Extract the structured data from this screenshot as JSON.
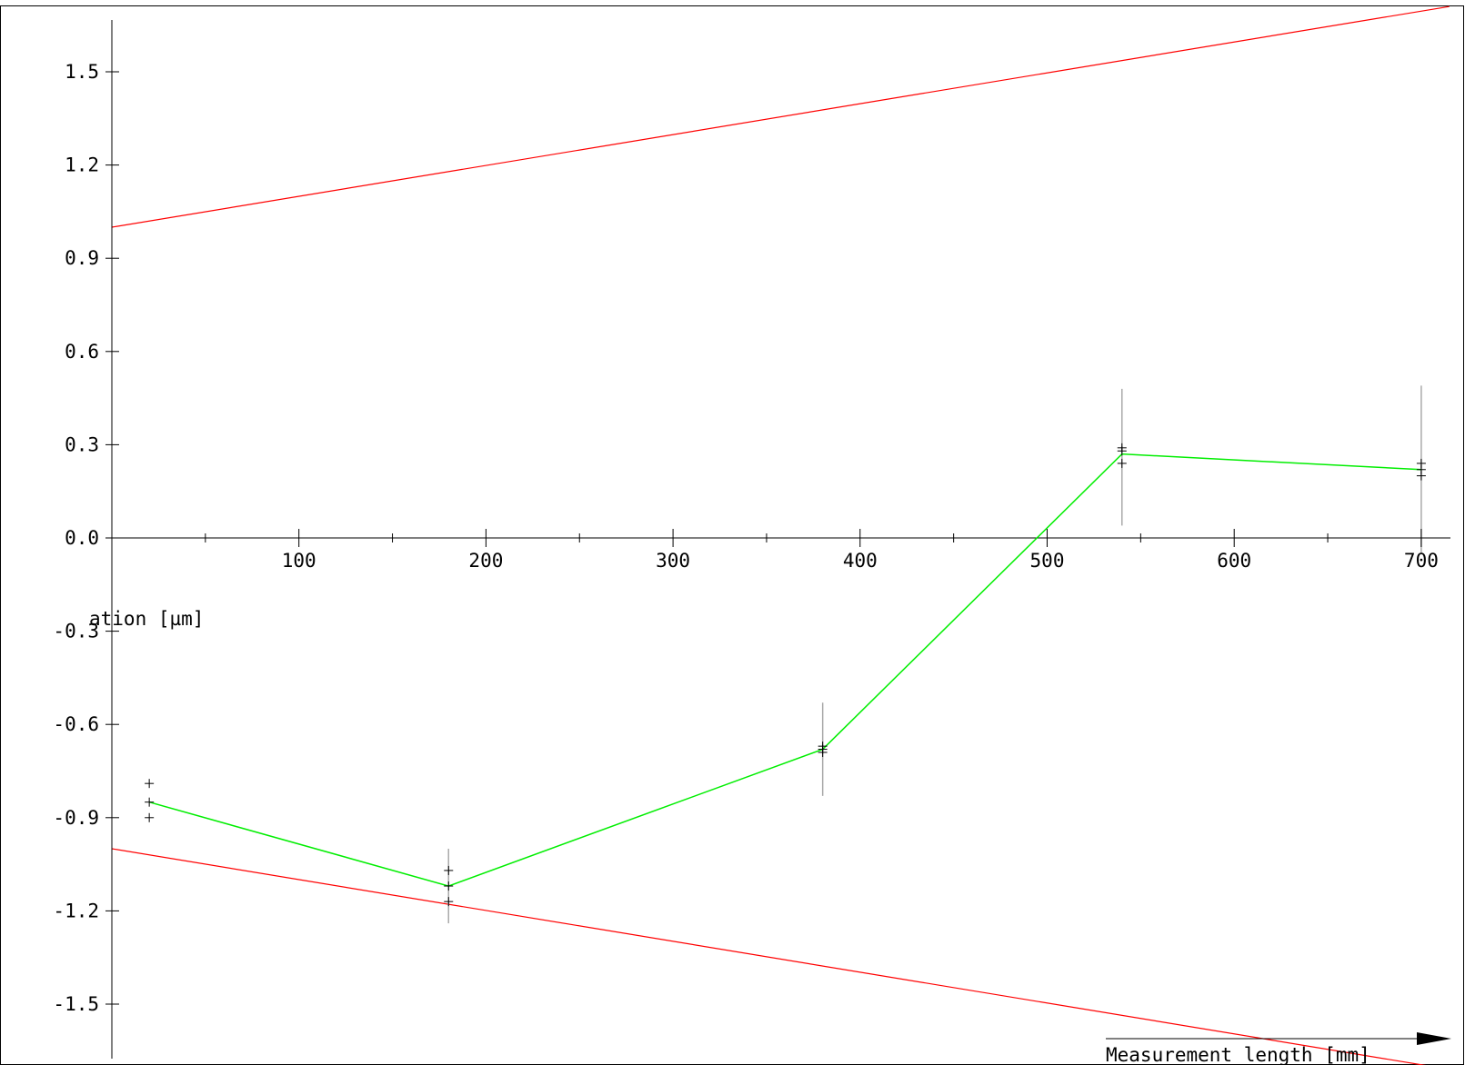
{
  "chart_data": {
    "type": "line",
    "title": "",
    "xlabel": "Measurement length [mm]",
    "ylabel": "ation  [µm]",
    "xlim": [
      0,
      715
    ],
    "ylim": [
      -1.68,
      1.7
    ],
    "x_ticks": [
      100,
      200,
      300,
      400,
      500,
      600,
      700
    ],
    "x_tick_labels": [
      "100",
      "200",
      "300",
      "400",
      "500",
      "600",
      "700"
    ],
    "y_ticks": [
      1.5,
      1.2,
      0.9,
      0.6,
      0.3,
      0.0,
      -0.3,
      -0.6,
      -0.9,
      -1.2,
      -1.5
    ],
    "y_tick_labels": [
      "1.5",
      "1.2",
      "0.9",
      "0.6",
      "0.3",
      "0.0",
      "-0.3",
      "-0.6",
      "-0.9",
      "-1.2",
      "-1.5"
    ],
    "grid": false,
    "colors": {
      "limits": "#ff0000",
      "mean": "#00ee00",
      "points": "#000000",
      "errorbars": "#aaaaaa",
      "axes": "#000000"
    },
    "series": [
      {
        "kind": "limit",
        "x": [
          0,
          715
        ],
        "y": [
          1.0,
          1.71
        ]
      },
      {
        "kind": "limit",
        "x": [
          0,
          715
        ],
        "y": [
          -1.0,
          -1.71
        ]
      },
      {
        "kind": "mean",
        "x": [
          20,
          180,
          380,
          540,
          700
        ],
        "y": [
          -0.85,
          -1.12,
          -0.68,
          0.27,
          0.22
        ]
      },
      {
        "kind": "points",
        "points": [
          [
            20,
            -0.79
          ],
          [
            20,
            -0.85
          ],
          [
            20,
            -0.9
          ],
          [
            180,
            -1.07
          ],
          [
            180,
            -1.12
          ],
          [
            180,
            -1.17
          ],
          [
            380,
            -0.67
          ],
          [
            380,
            -0.68
          ],
          [
            380,
            -0.69
          ],
          [
            540,
            0.29
          ],
          [
            540,
            0.28
          ],
          [
            540,
            0.24
          ],
          [
            700,
            0.24
          ],
          [
            700,
            0.22
          ],
          [
            700,
            0.2
          ]
        ]
      },
      {
        "kind": "errorbars",
        "bars": [
          {
            "x": 180,
            "low": -1.24,
            "high": -1.0
          },
          {
            "x": 380,
            "low": -0.83,
            "high": -0.53
          },
          {
            "x": 540,
            "low": 0.04,
            "high": 0.48
          },
          {
            "x": 700,
            "low": -0.05,
            "high": 0.49
          }
        ]
      }
    ]
  }
}
